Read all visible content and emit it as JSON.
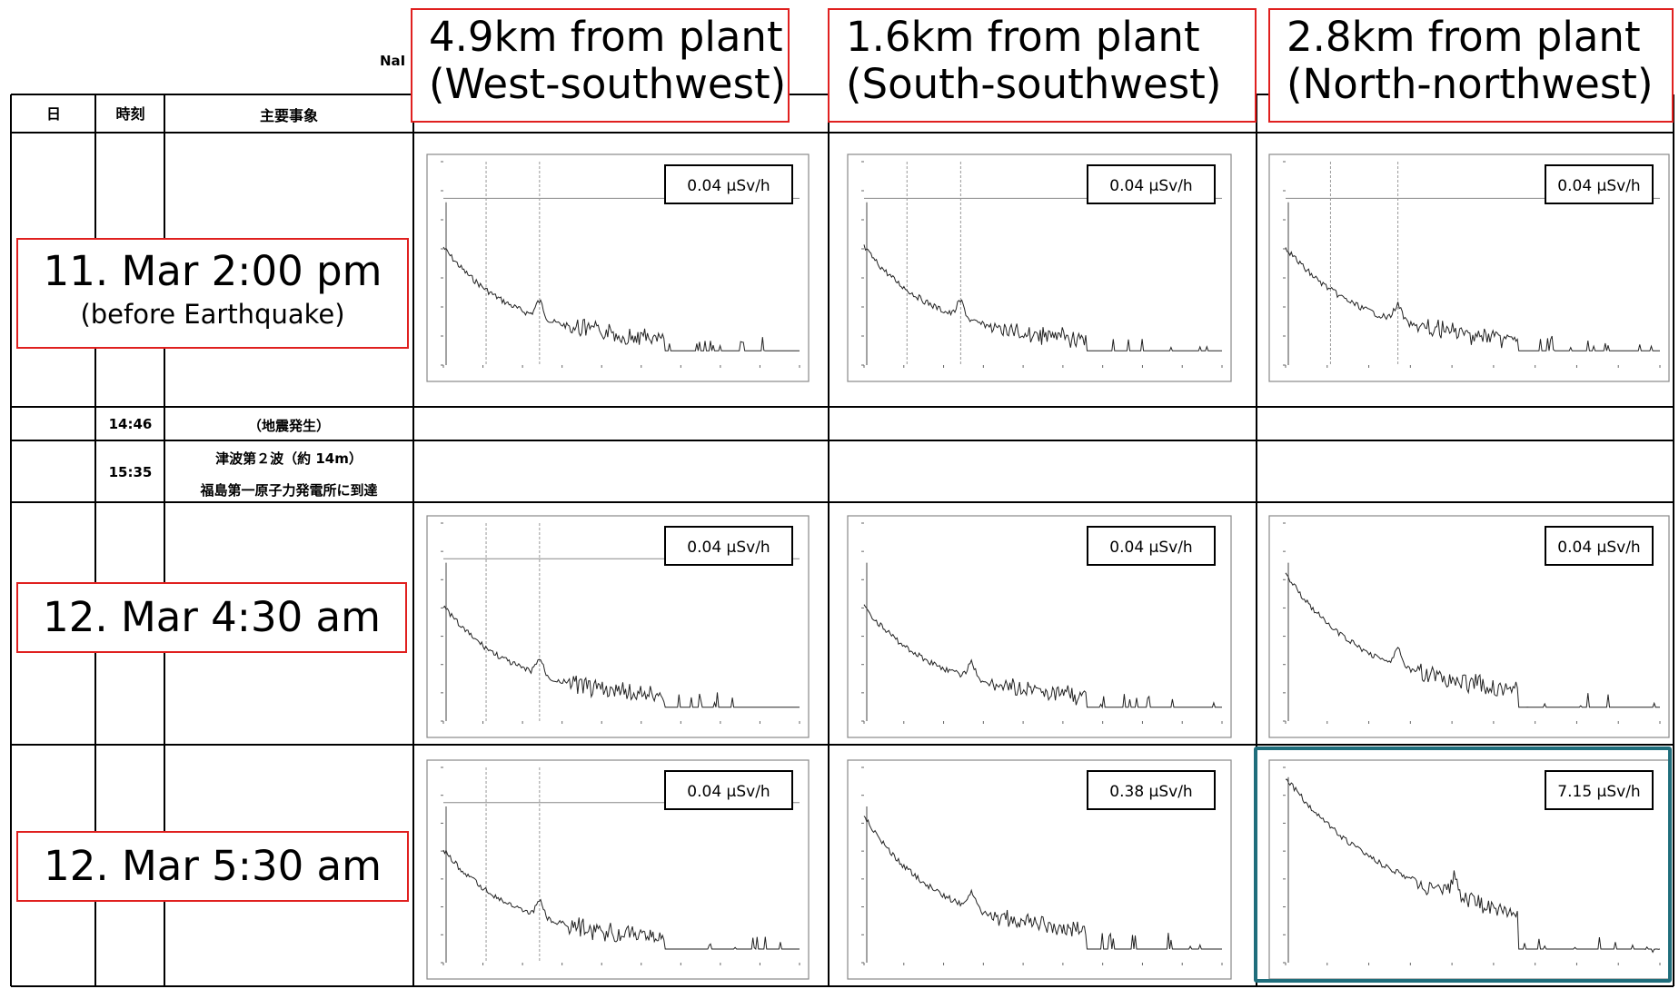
{
  "doc": {
    "fragment": "NaI",
    "header": {
      "day": "日",
      "time": "時刻",
      "event": "主要事象"
    },
    "columns": [
      {
        "line1": "4.9km from plant",
        "line2": "(West-southwest)"
      },
      {
        "line1": "1.6km from plant",
        "line2": "(South-southwest)"
      },
      {
        "line1": "2.8km from plant",
        "line2": "(North-northwest)"
      }
    ],
    "rows": [
      {
        "label1": "11. Mar 2:00 pm",
        "label2": "(before Earthquake)"
      },
      {
        "time": "14:46",
        "event": "（地震発生）"
      },
      {
        "time": "15:35",
        "event1": "津波第２波（約 14m）",
        "event2": "福島第一原子力発電所に到達"
      },
      {
        "label1": "12. Mar 4:30 am"
      },
      {
        "label1": "12. Mar 5:30 am"
      }
    ]
  },
  "colors": {
    "label_border": "#e0201f",
    "highlight_border": "#1f6e7c",
    "table_line": "#000000"
  },
  "chart_data": [
    {
      "type": "line",
      "time": "11. Mar 2:00 pm",
      "location": "4.9km from plant (West-southwest)",
      "dose": "0.04 μSv/h",
      "profile": "low",
      "marker_lines": true,
      "peak_at": 0.27
    },
    {
      "type": "line",
      "time": "11. Mar 2:00 pm",
      "location": "1.6km from plant (South-southwest)",
      "dose": "0.04 μSv/h",
      "profile": "low",
      "marker_lines": true,
      "peak_at": 0.27
    },
    {
      "type": "line",
      "time": "11. Mar 2:00 pm",
      "location": "2.8km from plant (North-northwest)",
      "dose": "0.04 μSv/h",
      "profile": "low",
      "marker_lines": true,
      "peak_at": 0.3
    },
    {
      "type": "line",
      "time": "12. Mar 4:30 am",
      "location": "4.9km from plant (West-southwest)",
      "dose": "0.04 μSv/h",
      "profile": "low",
      "marker_lines": true,
      "peak_at": 0.27
    },
    {
      "type": "line",
      "time": "12. Mar 4:30 am",
      "location": "1.6km from plant (South-southwest)",
      "dose": "0.04 μSv/h",
      "profile": "low",
      "marker_lines": false,
      "peak_at": 0.3
    },
    {
      "type": "line",
      "time": "12. Mar 4:30 am",
      "location": "2.8km from plant (North-northwest)",
      "dose": "0.04 μSv/h",
      "profile": "mid",
      "marker_lines": false,
      "peak_at": 0.3
    },
    {
      "type": "line",
      "time": "12. Mar 5:30 am",
      "location": "4.9km from plant (West-southwest)",
      "dose": "0.04 μSv/h",
      "profile": "low",
      "marker_lines": true,
      "peak_at": 0.27
    },
    {
      "type": "line",
      "time": "12. Mar 5:30 am",
      "location": "1.6km from plant (South-southwest)",
      "dose": "0.38 μSv/h",
      "profile": "mid",
      "marker_lines": false,
      "peak_at": 0.3
    },
    {
      "type": "line",
      "time": "12. Mar 5:30 am",
      "location": "2.8km from plant (North-northwest)",
      "dose": "7.15 μSv/h",
      "profile": "high",
      "marker_lines": false,
      "peak_at": 0.45
    }
  ]
}
